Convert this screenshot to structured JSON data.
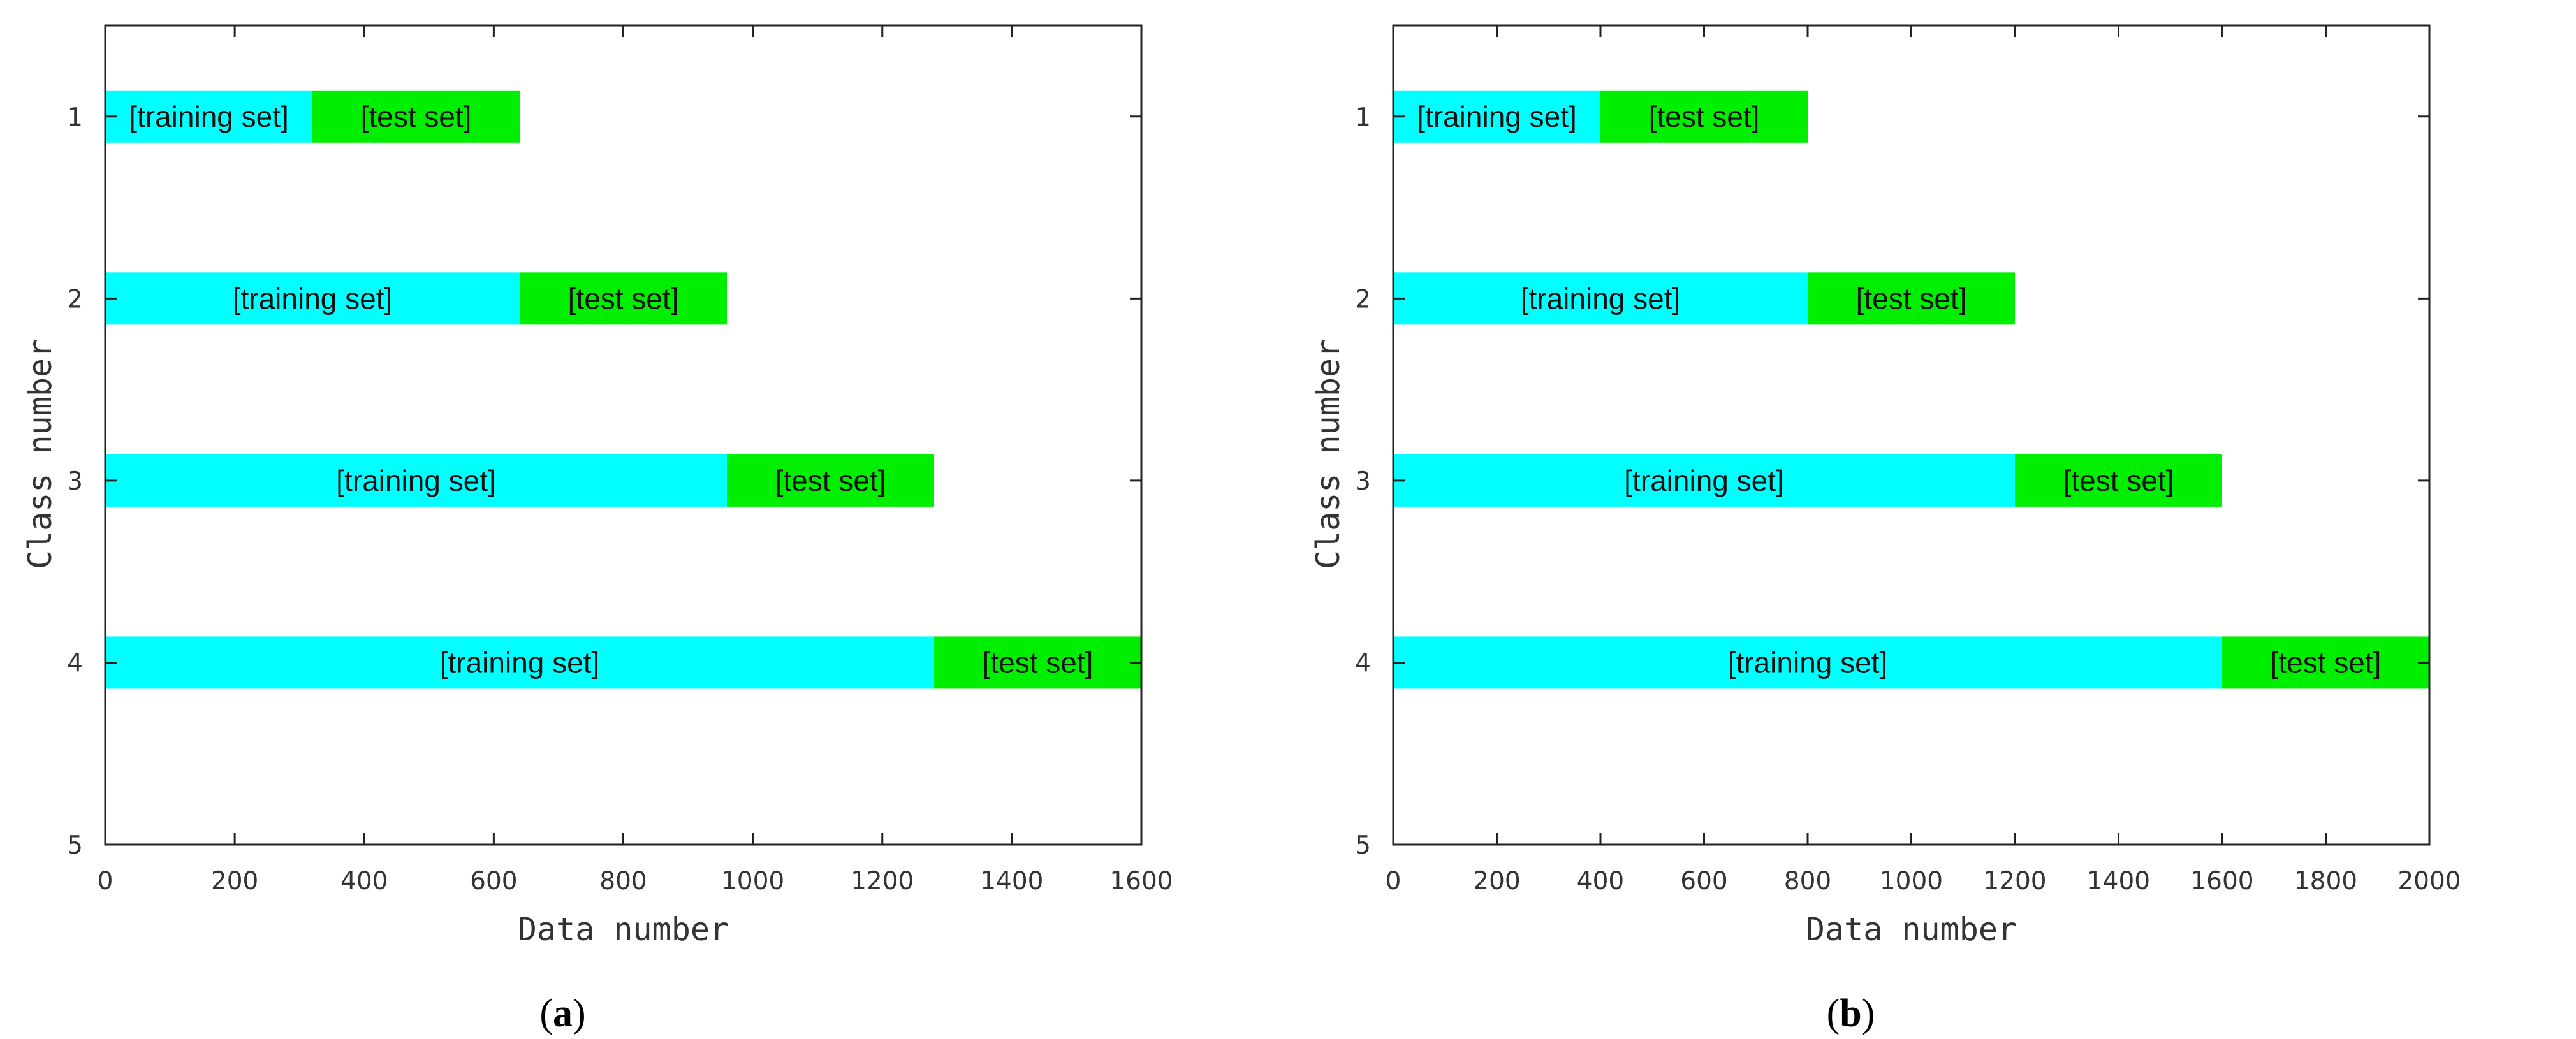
{
  "chart_data": [
    {
      "type": "bar",
      "orientation": "horizontal-stacked",
      "caption": "(a)",
      "caption_letter": "a",
      "xlabel": "Data number",
      "ylabel": "Class number",
      "xlim": [
        0,
        1600
      ],
      "ylim": [
        0.5,
        5
      ],
      "xticks": [
        0,
        200,
        400,
        600,
        800,
        1000,
        1200,
        1400,
        1600
      ],
      "yticks": [
        1,
        2,
        3,
        4,
        5
      ],
      "grid": false,
      "categories": [
        1,
        2,
        3,
        4
      ],
      "series": [
        {
          "label": "[training set]",
          "color": "#00ffff",
          "starts": [
            0,
            0,
            0,
            0
          ],
          "values": [
            320,
            640,
            960,
            1280
          ]
        },
        {
          "label": "[test set]",
          "color": "#00ee00",
          "starts": [
            320,
            640,
            960,
            1280
          ],
          "values": [
            320,
            320,
            320,
            320
          ]
        }
      ]
    },
    {
      "type": "bar",
      "orientation": "horizontal-stacked",
      "caption": "(b)",
      "caption_letter": "b",
      "xlabel": "Data number",
      "ylabel": "Class number",
      "xlim": [
        0,
        2000
      ],
      "ylim": [
        0.5,
        5
      ],
      "xticks": [
        0,
        200,
        400,
        600,
        800,
        1000,
        1200,
        1400,
        1600,
        1800,
        2000
      ],
      "yticks": [
        1,
        2,
        3,
        4,
        5
      ],
      "grid": false,
      "categories": [
        1,
        2,
        3,
        4
      ],
      "series": [
        {
          "label": "[training set]",
          "color": "#00ffff",
          "starts": [
            0,
            0,
            0,
            0
          ],
          "values": [
            400,
            800,
            1200,
            1600
          ]
        },
        {
          "label": "[test set]",
          "color": "#00ee00",
          "starts": [
            400,
            800,
            1200,
            1600
          ],
          "values": [
            400,
            400,
            400,
            400
          ]
        }
      ]
    }
  ]
}
